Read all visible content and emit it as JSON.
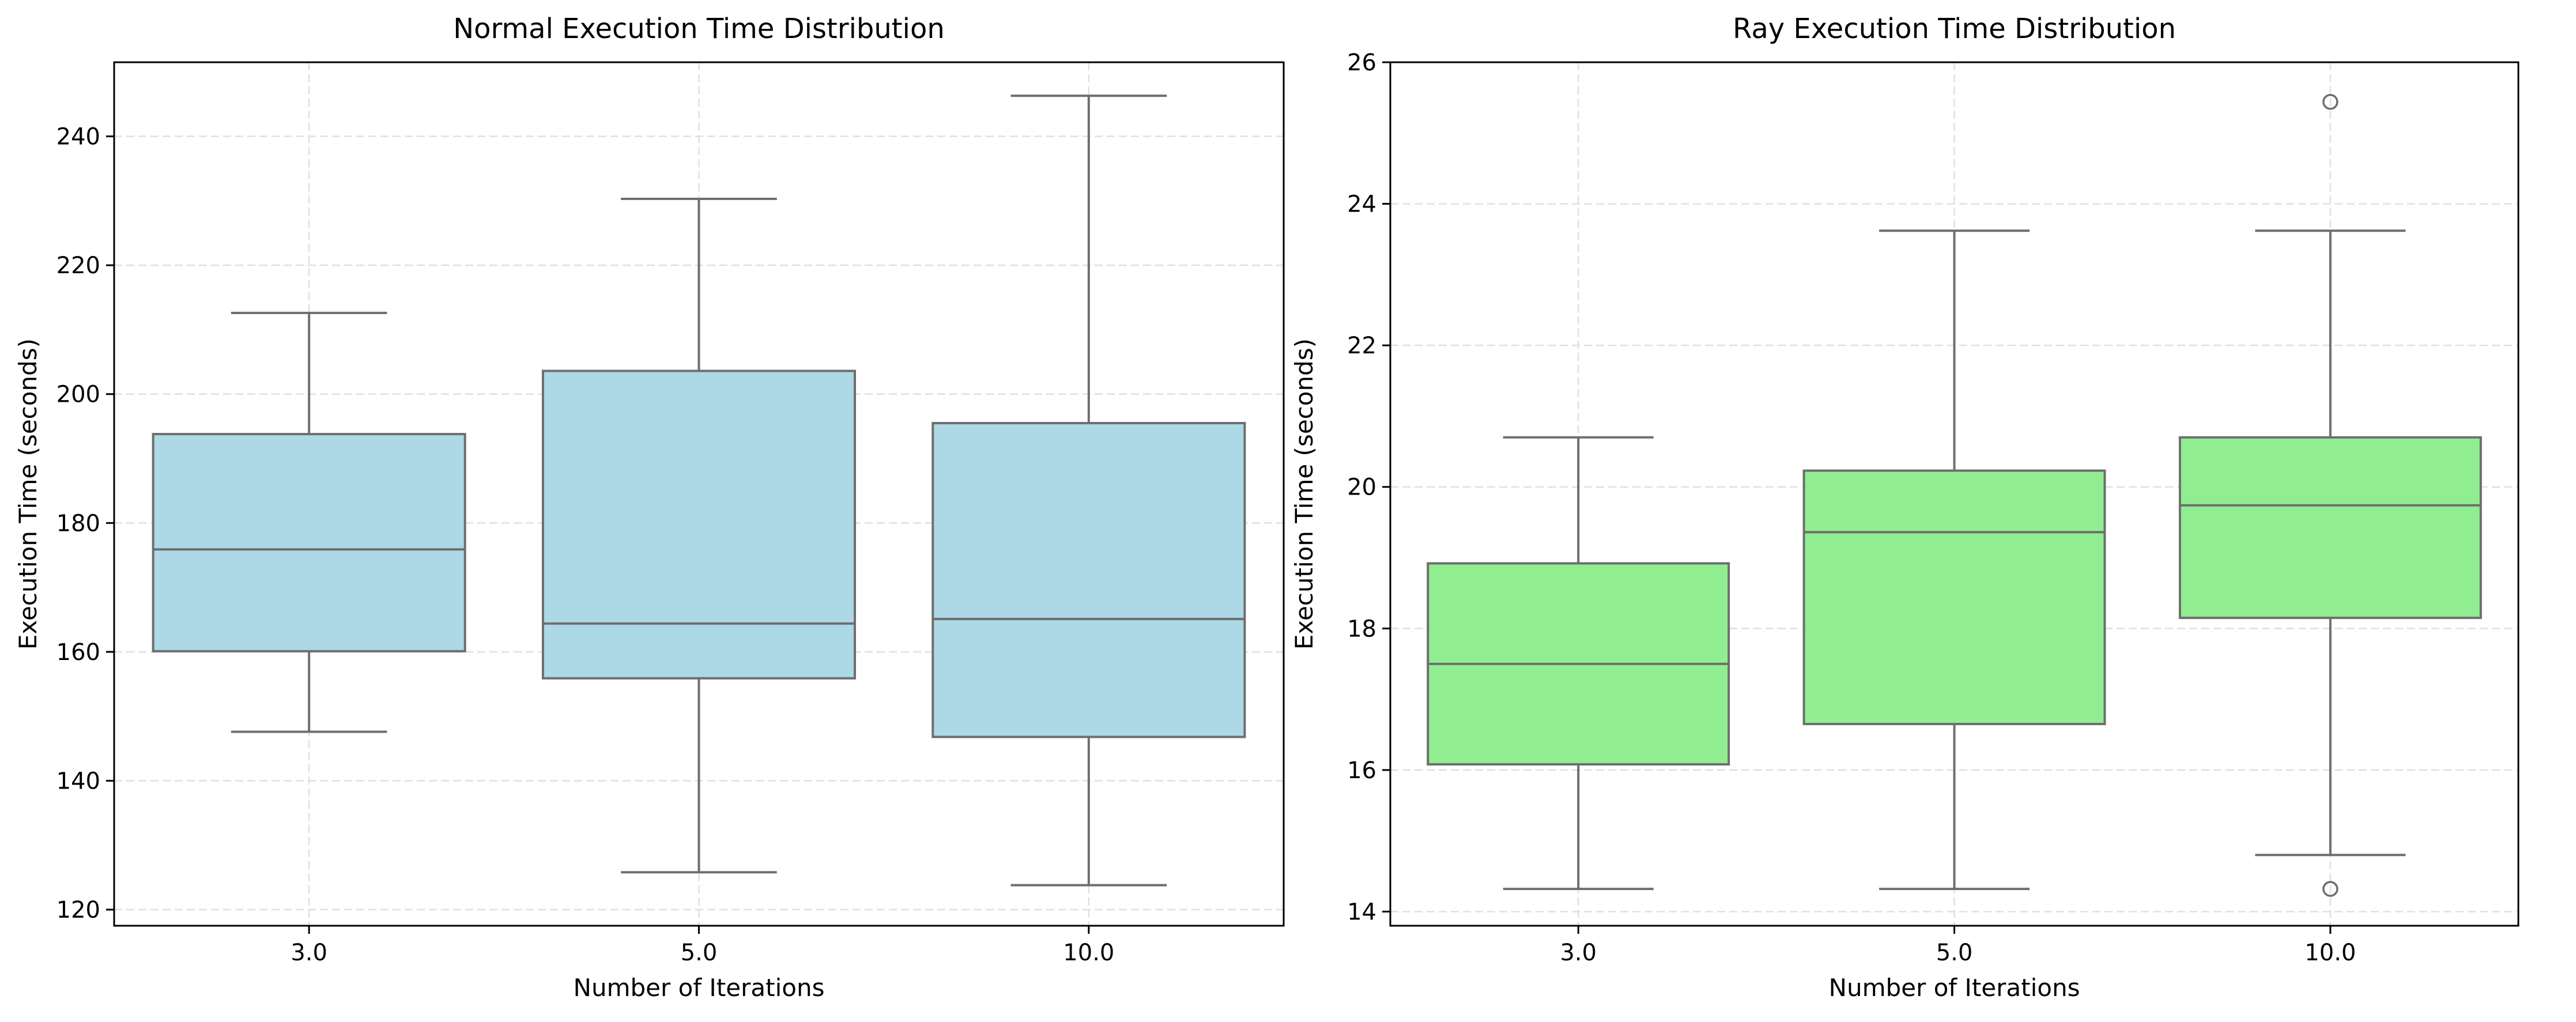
{
  "chart_data": [
    {
      "type": "box",
      "title": "Normal Execution Time Distribution",
      "xlabel": "Number of Iterations",
      "ylabel": "Execution Time (seconds)",
      "categories": [
        "3.0",
        "5.0",
        "10.0"
      ],
      "ylim": [
        117.5,
        251.5
      ],
      "yticks": [
        120,
        140,
        160,
        180,
        200,
        220,
        240
      ],
      "grid": true,
      "box_color": "#add8e6",
      "line_color": "#6e6e6e",
      "boxes": [
        {
          "category": "3.0",
          "whisker_low": 147.6,
          "q1": 160.1,
          "median": 175.9,
          "q3": 193.8,
          "whisker_high": 212.6,
          "outliers": []
        },
        {
          "category": "5.0",
          "whisker_low": 125.8,
          "q1": 155.9,
          "median": 164.4,
          "q3": 203.6,
          "whisker_high": 230.3,
          "outliers": []
        },
        {
          "category": "10.0",
          "whisker_low": 123.8,
          "q1": 146.8,
          "median": 165.1,
          "q3": 195.5,
          "whisker_high": 246.3,
          "outliers": []
        }
      ]
    },
    {
      "type": "box",
      "title": "Ray Execution Time Distribution",
      "xlabel": "Number of Iterations",
      "ylabel": "Execution Time (seconds)",
      "categories": [
        "3.0",
        "5.0",
        "10.0"
      ],
      "ylim": [
        13.8,
        26.0
      ],
      "yticks": [
        14,
        16,
        18,
        20,
        22,
        24,
        26
      ],
      "grid": true,
      "box_color": "#90ee90",
      "line_color": "#6e6e6e",
      "boxes": [
        {
          "category": "3.0",
          "whisker_low": 14.32,
          "q1": 16.08,
          "median": 17.5,
          "q3": 18.92,
          "whisker_high": 20.7,
          "outliers": []
        },
        {
          "category": "5.0",
          "whisker_low": 14.32,
          "q1": 16.65,
          "median": 19.36,
          "q3": 20.23,
          "whisker_high": 23.62,
          "outliers": []
        },
        {
          "category": "10.0",
          "whisker_low": 14.8,
          "q1": 18.15,
          "median": 19.74,
          "q3": 20.7,
          "whisker_high": 23.62,
          "outliers": [
            25.44,
            14.32
          ]
        }
      ]
    }
  ]
}
